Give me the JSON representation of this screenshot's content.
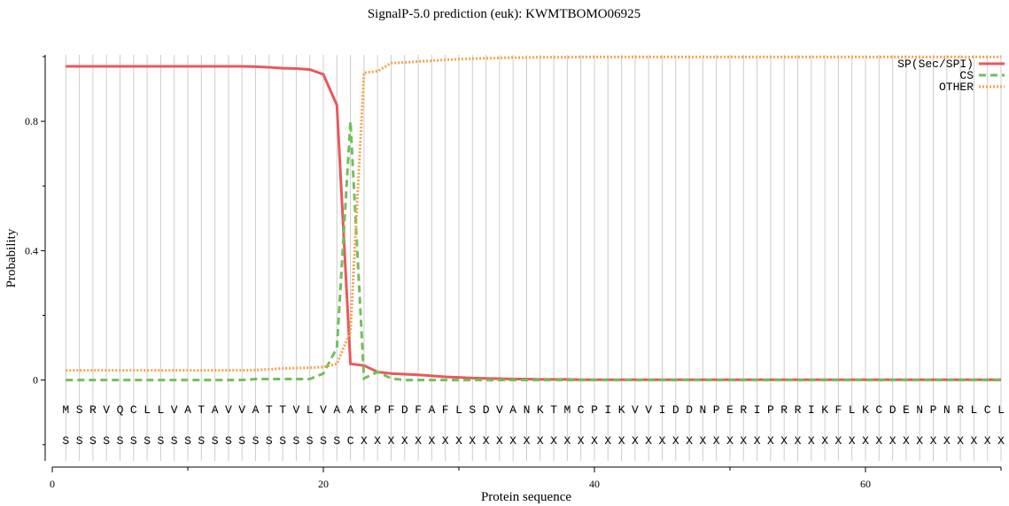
{
  "chart_data": {
    "type": "line",
    "title": "SignalP-5.0 prediction (euk):  KWMTBOMO06925",
    "xlabel": "Protein sequence",
    "ylabel": "Probability",
    "x": [
      1,
      2,
      3,
      4,
      5,
      6,
      7,
      8,
      9,
      10,
      11,
      12,
      13,
      14,
      15,
      16,
      17,
      18,
      19,
      20,
      21,
      22,
      23,
      24,
      25,
      26,
      27,
      28,
      29,
      30,
      31,
      32,
      33,
      34,
      35,
      36,
      37,
      38,
      39,
      40,
      41,
      42,
      43,
      44,
      45,
      46,
      47,
      48,
      49,
      50,
      51,
      52,
      53,
      54,
      55,
      56,
      57,
      58,
      59,
      60,
      61,
      62,
      63,
      64,
      65,
      66,
      67,
      68,
      69,
      70
    ],
    "sequence": [
      "M",
      "S",
      "R",
      "V",
      "Q",
      "C",
      "L",
      "L",
      "V",
      "A",
      "T",
      "A",
      "V",
      "V",
      "A",
      "T",
      "T",
      "V",
      "L",
      "V",
      "A",
      "A",
      "K",
      "P",
      "F",
      "D",
      "F",
      "A",
      "F",
      "L",
      "S",
      "D",
      "V",
      "A",
      "N",
      "K",
      "T",
      "M",
      "C",
      "P",
      "I",
      "K",
      "V",
      "V",
      "I",
      "D",
      "D",
      "N",
      "P",
      "E",
      "R",
      "I",
      "P",
      "R",
      "R",
      "I",
      "K",
      "F",
      "L",
      "K",
      "C",
      "D",
      "E",
      "N",
      "P",
      "N",
      "R",
      "L",
      "C",
      "L"
    ],
    "prediction": [
      "S",
      "S",
      "S",
      "S",
      "S",
      "S",
      "S",
      "S",
      "S",
      "S",
      "S",
      "S",
      "S",
      "S",
      "S",
      "S",
      "S",
      "S",
      "S",
      "S",
      "S",
      "C",
      "X",
      "X",
      "X",
      "X",
      "X",
      "X",
      "X",
      "X",
      "X",
      "X",
      "X",
      "X",
      "X",
      "X",
      "X",
      "X",
      "X",
      "X",
      "X",
      "X",
      "X",
      "X",
      "X",
      "X",
      "X",
      "X",
      "X",
      "X",
      "X",
      "X",
      "X",
      "X",
      "X",
      "X",
      "X",
      "X",
      "X",
      "X",
      "X",
      "X",
      "X",
      "X",
      "X",
      "X",
      "X",
      "X",
      "X",
      "X"
    ],
    "series": [
      {
        "name": "SP(Sec/SPI)",
        "color": "#e9585b",
        "dash": "solid",
        "values": [
          0.97,
          0.97,
          0.97,
          0.97,
          0.97,
          0.97,
          0.97,
          0.97,
          0.97,
          0.97,
          0.97,
          0.97,
          0.97,
          0.97,
          0.969,
          0.967,
          0.964,
          0.963,
          0.96,
          0.945,
          0.85,
          0.05,
          0.045,
          0.025,
          0.02,
          0.018,
          0.016,
          0.013,
          0.01,
          0.008,
          0.006,
          0.005,
          0.004,
          0.003,
          0.003,
          0.002,
          0.002,
          0.002,
          0.001,
          0.001,
          0.001,
          0.001,
          0.001,
          0.001,
          0.001,
          0.001,
          0.001,
          0.001,
          0.001,
          0.001,
          0.001,
          0.001,
          0.001,
          0.001,
          0.001,
          0.001,
          0.001,
          0.001,
          0.001,
          0.001,
          0.001,
          0.001,
          0.001,
          0.001,
          0.001,
          0.001,
          0.001,
          0.001,
          0.001,
          0.001
        ]
      },
      {
        "name": "CS",
        "color": "#72c05b",
        "dash": "dashed",
        "values": [
          0,
          0,
          0,
          0,
          0,
          0,
          0,
          0,
          0,
          0,
          0,
          0,
          0,
          0,
          0.003,
          0.003,
          0.003,
          0.003,
          0.003,
          0.02,
          0.1,
          0.8,
          0.005,
          0.025,
          0.005,
          0,
          0,
          0,
          0,
          0,
          0,
          0,
          0,
          0,
          0,
          0,
          0,
          0,
          0,
          0,
          0,
          0,
          0,
          0,
          0,
          0,
          0,
          0,
          0,
          0,
          0,
          0,
          0,
          0,
          0,
          0,
          0,
          0,
          0,
          0,
          0,
          0,
          0,
          0,
          0,
          0,
          0,
          0,
          0,
          0
        ]
      },
      {
        "name": "OTHER",
        "color": "#f4a44a",
        "dash": "dotted",
        "values": [
          0.03,
          0.03,
          0.03,
          0.03,
          0.03,
          0.03,
          0.03,
          0.03,
          0.03,
          0.03,
          0.03,
          0.03,
          0.03,
          0.03,
          0.031,
          0.033,
          0.036,
          0.037,
          0.038,
          0.04,
          0.05,
          0.15,
          0.95,
          0.955,
          0.98,
          0.982,
          0.985,
          0.987,
          0.99,
          0.992,
          0.994,
          0.995,
          0.996,
          0.997,
          0.997,
          0.998,
          0.998,
          0.998,
          0.999,
          0.999,
          0.999,
          0.999,
          0.999,
          0.999,
          0.999,
          0.999,
          0.999,
          0.999,
          0.999,
          0.999,
          0.999,
          0.999,
          0.999,
          0.999,
          0.999,
          0.999,
          0.999,
          0.999,
          0.999,
          0.999,
          0.999,
          0.999,
          0.999,
          0.999,
          0.999,
          0.999,
          0.999,
          0.999,
          0.999,
          0.999
        ]
      }
    ],
    "xlim": [
      0,
      70
    ],
    "ylim": [
      -0.25,
      1.0
    ],
    "xticks": [
      0,
      20,
      40,
      60
    ],
    "xminorticks": [
      10,
      30,
      50,
      70
    ],
    "yticks": [
      0,
      0.4,
      0.8
    ],
    "yminorticks": [
      -0.2,
      0.2,
      0.6,
      1.0
    ],
    "grid": true,
    "legend": "top-right"
  }
}
